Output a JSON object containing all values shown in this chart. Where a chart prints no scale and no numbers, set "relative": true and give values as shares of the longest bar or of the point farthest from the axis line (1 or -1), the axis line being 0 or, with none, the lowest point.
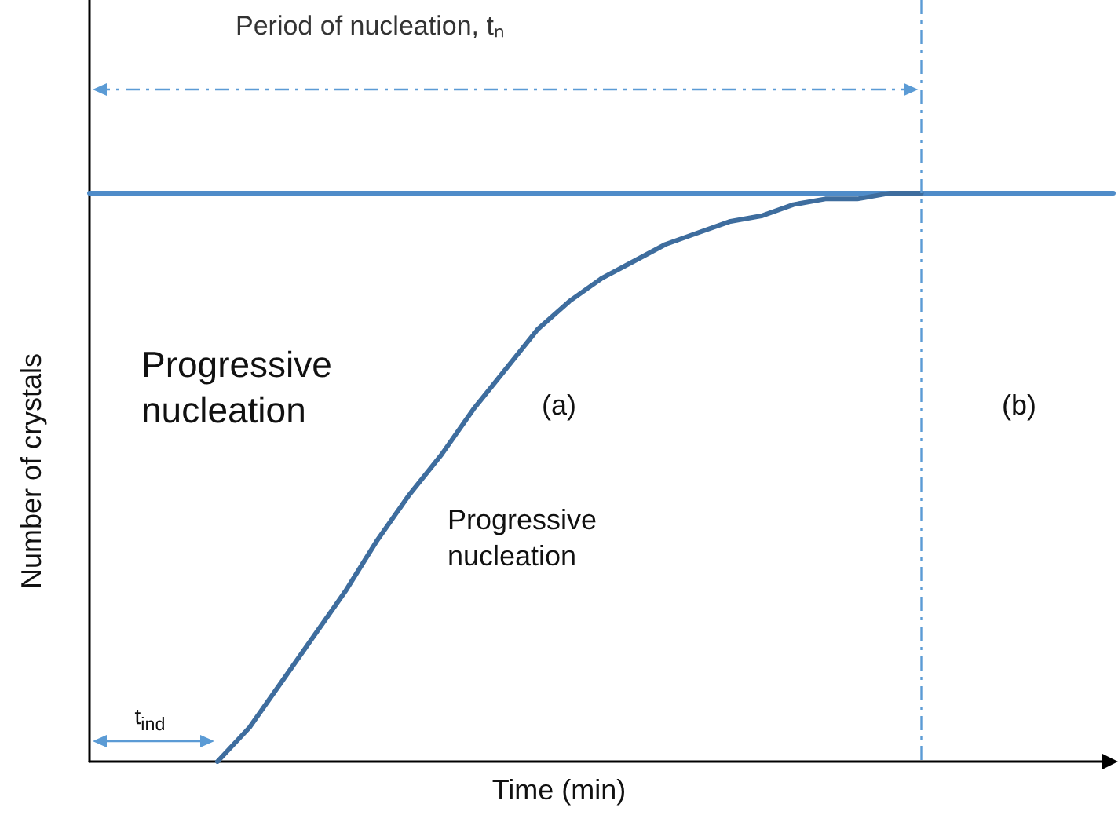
{
  "chart_data": {
    "type": "line",
    "relative": true,
    "title": "Period of nucleation, tₙ",
    "xlabel": "Time (min)",
    "ylabel": "Number of crystals",
    "marker": "none",
    "line_style": "solid",
    "categories": [
      null,
      null,
      null,
      null,
      null,
      null,
      null,
      null,
      null,
      null,
      null,
      null,
      null,
      null,
      null,
      null,
      null,
      null,
      null,
      null,
      null,
      null,
      null,
      null,
      null,
      null,
      null,
      null,
      null,
      null,
      null,
      null,
      null
    ],
    "series": [
      {
        "color": "#4f8cc9",
        "values": [
          1,
          1,
          1,
          1,
          1,
          1,
          1,
          1,
          1,
          1,
          1,
          1,
          1,
          1,
          1,
          1,
          1,
          1,
          1,
          1,
          1,
          1,
          1,
          1,
          1,
          1,
          1,
          1,
          1,
          1,
          1,
          1,
          1
        ]
      },
      {
        "color": "#3e6d9e",
        "values": [
          null,
          null,
          null,
          null,
          0,
          0.06,
          0.14,
          0.22,
          0.3,
          0.39,
          0.47,
          0.54,
          0.62,
          0.69,
          0.76,
          0.81,
          0.85,
          0.88,
          0.91,
          0.93,
          0.95,
          0.96,
          0.98,
          0.99,
          0.99,
          1,
          1,
          null,
          null,
          null,
          null,
          null,
          null
        ]
      }
    ],
    "annotations": [
      "Progressive\nnucleation",
      "(a)",
      "(b)",
      "Progressive\nnucleation",
      "t$_{ind}$"
    ]
  }
}
